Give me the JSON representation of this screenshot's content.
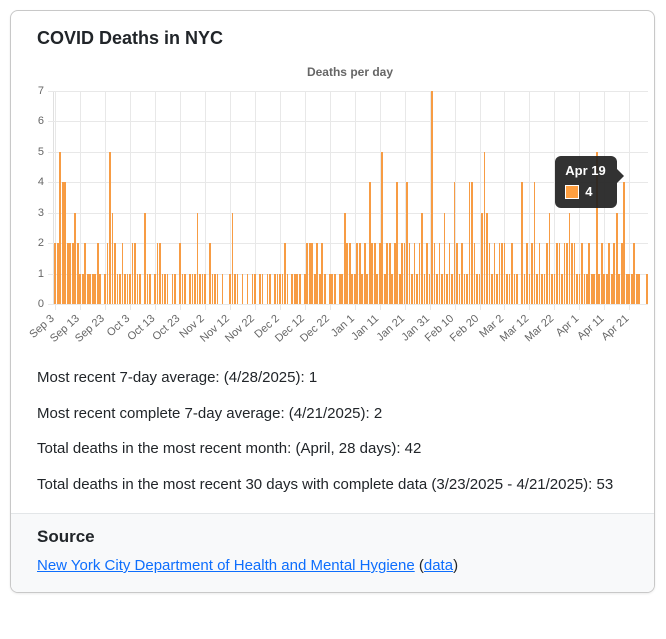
{
  "card": {
    "title": "COVID Deaths in NYC"
  },
  "chart_data": {
    "type": "bar",
    "title": "Deaths per day",
    "xlabel": "",
    "ylabel": "",
    "ylim": [
      0,
      7
    ],
    "yticks": [
      0,
      1,
      2,
      3,
      4,
      5,
      6,
      7
    ],
    "grid": true,
    "legend_position": "none",
    "bar_color": "#f79c44",
    "x_start_label": "Sep 3",
    "x_end_label": "Apr 28",
    "xtick_every": 10,
    "xtick_labels": [
      "Sep 3",
      "Sep 13",
      "Sep 23",
      "Oct 3",
      "Oct 13",
      "Oct 23",
      "Nov 2",
      "Nov 12",
      "Nov 22",
      "Dec 2",
      "Dec 12",
      "Dec 22",
      "Jan 1",
      "Jan 11",
      "Jan 21",
      "Jan 31",
      "Feb 10",
      "Feb 20",
      "Mar 2",
      "Mar 12",
      "Mar 22",
      "Apr 1",
      "Apr 11",
      "Apr 21"
    ],
    "values": [
      2,
      2,
      5,
      4,
      4,
      2,
      2,
      2,
      3,
      2,
      1,
      1,
      2,
      1,
      1,
      1,
      1,
      2,
      1,
      0,
      1,
      2,
      5,
      3,
      2,
      1,
      1,
      2,
      1,
      1,
      1,
      2,
      2,
      1,
      1,
      0,
      3,
      1,
      1,
      0,
      1,
      2,
      2,
      1,
      1,
      1,
      0,
      1,
      1,
      0,
      2,
      1,
      1,
      0,
      1,
      1,
      1,
      3,
      1,
      1,
      1,
      0,
      2,
      1,
      1,
      1,
      0,
      1,
      0,
      0,
      1,
      3,
      1,
      1,
      0,
      1,
      0,
      1,
      0,
      1,
      1,
      0,
      1,
      1,
      0,
      1,
      1,
      0,
      1,
      1,
      1,
      1,
      2,
      1,
      0,
      1,
      1,
      1,
      1,
      0,
      1,
      2,
      2,
      2,
      1,
      2,
      1,
      2,
      1,
      0,
      1,
      1,
      1,
      0,
      1,
      1,
      3,
      2,
      2,
      1,
      1,
      2,
      2,
      1,
      2,
      1,
      4,
      2,
      2,
      1,
      2,
      5,
      1,
      2,
      2,
      1,
      2,
      4,
      1,
      2,
      2,
      4,
      2,
      1,
      2,
      1,
      2,
      3,
      1,
      2,
      1,
      7,
      2,
      1,
      2,
      1,
      3,
      1,
      2,
      1,
      4,
      2,
      1,
      2,
      1,
      1,
      4,
      4,
      2,
      1,
      1,
      3,
      5,
      3,
      2,
      1,
      2,
      1,
      2,
      2,
      2,
      1,
      1,
      2,
      1,
      1,
      0,
      4,
      1,
      2,
      1,
      2,
      4,
      1,
      2,
      1,
      1,
      2,
      3,
      1,
      1,
      2,
      2,
      1,
      2,
      2,
      3,
      2,
      2,
      1,
      1,
      2,
      1,
      1,
      2,
      1,
      1,
      5,
      1,
      2,
      1,
      1,
      2,
      1,
      2,
      3,
      1,
      2,
      4,
      1,
      1,
      1,
      2,
      1,
      1,
      0,
      0,
      1
    ]
  },
  "tooltip": {
    "title": "Apr 19",
    "value": "4",
    "target_index": 228,
    "target_value": 4,
    "swatch_color": "#ff9f40"
  },
  "stats": [
    "Most recent 7-day average: (4/28/2025): 1",
    "Most recent complete 7-day average: (4/21/2025): 2",
    "Total deaths in the most recent month: (April, 28 days): 42",
    "Total deaths in the most recent 30 days with complete data (3/23/2025 - 4/21/2025): 53"
  ],
  "source": {
    "heading": "Source",
    "primary_link": "New York City Department of Health and Mental Hygiene",
    "open_paren": "(",
    "data_link": "data",
    "close_paren": ")"
  }
}
